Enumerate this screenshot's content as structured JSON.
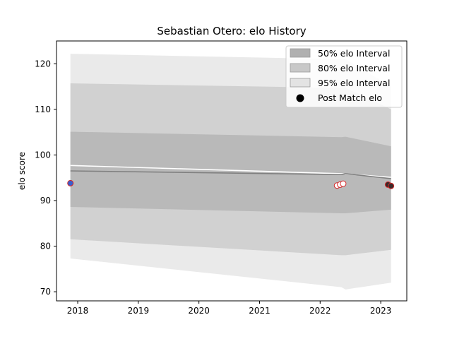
{
  "chart_data": {
    "type": "area",
    "title": "Sebastian Otero: elo History",
    "xlabel": "",
    "ylabel": "elo score",
    "xlim": [
      2017.65,
      2023.43
    ],
    "ylim": [
      68,
      125
    ],
    "xticks": [
      2018,
      2019,
      2020,
      2021,
      2022,
      2023
    ],
    "yticks": [
      70,
      80,
      90,
      100,
      110,
      120
    ],
    "grid": false,
    "legend_placement": "top-right",
    "legend": [
      {
        "label": "50% elo Interval",
        "kind": "band50"
      },
      {
        "label": "80% elo Interval",
        "kind": "band80"
      },
      {
        "label": "95% elo Interval",
        "kind": "band95"
      },
      {
        "label": "Post Match elo",
        "kind": "marker"
      }
    ],
    "colors": {
      "band50": "#b0b0b0",
      "band80": "#c8c8c8",
      "band95": "#e3e3e3",
      "mean_line": "#808080",
      "upper_line": "#ffffff",
      "post_match": "#000000",
      "marker_edge": "#d62728",
      "marker_blue": "#3a5fcd",
      "marker_white": "#ffffff",
      "marker_dark": "#3a2a2a"
    },
    "band_x": [
      2017.88,
      2022.35,
      2022.42,
      2023.17
    ],
    "band95": {
      "upper": [
        122.2,
        121.0,
        121.0,
        115.0
      ],
      "lower": [
        77.3,
        71.0,
        70.5,
        72.0
      ]
    },
    "band80": {
      "upper": [
        115.7,
        114.7,
        114.7,
        110.0
      ],
      "lower": [
        81.5,
        78.0,
        78.0,
        79.2
      ]
    },
    "band50": {
      "upper": [
        105.1,
        103.9,
        104.0,
        101.9
      ],
      "lower": [
        88.6,
        87.2,
        87.2,
        88.0
      ]
    },
    "mean_line": {
      "x": [
        2017.88,
        2022.35,
        2022.42,
        2023.17
      ],
      "y": [
        96.5,
        95.7,
        95.9,
        94.8
      ]
    },
    "upper_line": {
      "x": [
        2017.88,
        2022.35,
        2023.17
      ],
      "y": [
        97.7,
        95.9,
        95.1
      ]
    },
    "series": [
      {
        "name": "Post Match elo",
        "points": [
          {
            "x": 2017.88,
            "y": 93.8,
            "fill": "marker_blue"
          },
          {
            "x": 2022.28,
            "y": 93.3,
            "fill": "marker_white"
          },
          {
            "x": 2022.33,
            "y": 93.5,
            "fill": "marker_white"
          },
          {
            "x": 2022.38,
            "y": 93.7,
            "fill": "marker_white"
          },
          {
            "x": 2023.12,
            "y": 93.5,
            "fill": "marker_dark"
          },
          {
            "x": 2023.17,
            "y": 93.2,
            "fill": "marker_dark"
          }
        ]
      }
    ]
  }
}
